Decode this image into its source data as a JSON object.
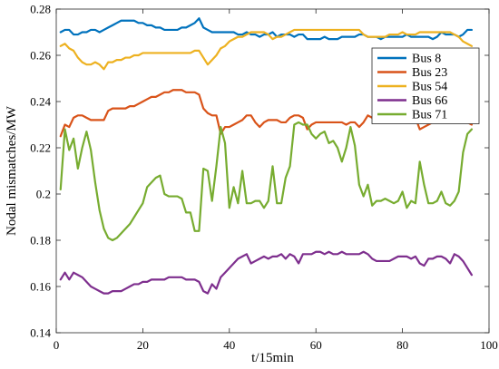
{
  "chart_data": {
    "type": "line",
    "xlabel": "t/15min",
    "ylabel": "Nodal mismatches/MW",
    "xlim": [
      0,
      100
    ],
    "ylim": [
      0.14,
      0.28
    ],
    "x_ticks": [
      0,
      20,
      40,
      60,
      80,
      100
    ],
    "y_ticks": [
      0.14,
      0.16,
      0.18,
      0.2,
      0.22,
      0.24,
      0.26,
      0.28
    ],
    "x_tick_labels": [
      "0",
      "20",
      "40",
      "60",
      "80",
      "100"
    ],
    "y_tick_labels": [
      "0.14",
      "0.16",
      "0.18",
      "0.2",
      "0.22",
      "0.24",
      "0.26",
      "0.28"
    ],
    "grid": false,
    "legend_position": "top-right",
    "series": [
      {
        "name": "Bus 8",
        "color": "#0072BD",
        "x": [
          1,
          2,
          3,
          4,
          5,
          6,
          7,
          8,
          9,
          10,
          11,
          12,
          13,
          14,
          15,
          16,
          17,
          18,
          19,
          20,
          21,
          22,
          23,
          24,
          25,
          26,
          27,
          28,
          29,
          30,
          31,
          32,
          33,
          34,
          35,
          36,
          37,
          38,
          39,
          40,
          41,
          42,
          43,
          44,
          45,
          46,
          47,
          48,
          49,
          50,
          51,
          52,
          53,
          54,
          55,
          56,
          57,
          58,
          59,
          60,
          61,
          62,
          63,
          64,
          65,
          66,
          67,
          68,
          69,
          70,
          71,
          72,
          73,
          74,
          75,
          76,
          77,
          78,
          79,
          80,
          81,
          82,
          83,
          84,
          85,
          86,
          87,
          88,
          89,
          90,
          91,
          92,
          93,
          94,
          95,
          96
        ],
        "values": [
          0.27,
          0.271,
          0.271,
          0.269,
          0.269,
          0.27,
          0.27,
          0.271,
          0.271,
          0.27,
          0.271,
          0.272,
          0.273,
          0.274,
          0.275,
          0.275,
          0.275,
          0.275,
          0.274,
          0.274,
          0.273,
          0.273,
          0.272,
          0.272,
          0.271,
          0.271,
          0.271,
          0.271,
          0.272,
          0.272,
          0.273,
          0.274,
          0.276,
          0.272,
          0.271,
          0.27,
          0.27,
          0.27,
          0.27,
          0.27,
          0.27,
          0.269,
          0.269,
          0.27,
          0.269,
          0.269,
          0.268,
          0.269,
          0.269,
          0.27,
          0.268,
          0.269,
          0.269,
          0.269,
          0.268,
          0.269,
          0.269,
          0.267,
          0.267,
          0.267,
          0.267,
          0.268,
          0.267,
          0.267,
          0.267,
          0.268,
          0.268,
          0.268,
          0.268,
          0.269,
          0.269,
          0.268,
          0.268,
          0.268,
          0.267,
          0.268,
          0.268,
          0.268,
          0.268,
          0.268,
          0.269,
          0.268,
          0.268,
          0.268,
          0.268,
          0.268,
          0.267,
          0.268,
          0.27,
          0.269,
          0.269,
          0.269,
          0.268,
          0.269,
          0.271,
          0.271
        ]
      },
      {
        "name": "Bus 23",
        "color": "#D95319",
        "x": [
          1,
          2,
          3,
          4,
          5,
          6,
          7,
          8,
          9,
          10,
          11,
          12,
          13,
          14,
          15,
          16,
          17,
          18,
          19,
          20,
          21,
          22,
          23,
          24,
          25,
          26,
          27,
          28,
          29,
          30,
          31,
          32,
          33,
          34,
          35,
          36,
          37,
          38,
          39,
          40,
          41,
          42,
          43,
          44,
          45,
          46,
          47,
          48,
          49,
          50,
          51,
          52,
          53,
          54,
          55,
          56,
          57,
          58,
          59,
          60,
          61,
          62,
          63,
          64,
          65,
          66,
          67,
          68,
          69,
          70,
          71,
          72,
          73,
          74,
          75,
          76,
          77,
          78,
          79,
          80,
          81,
          82,
          83,
          84,
          85,
          86,
          87,
          88,
          89,
          90,
          91,
          92,
          93,
          94,
          95,
          96
        ],
        "values": [
          0.225,
          0.23,
          0.229,
          0.233,
          0.234,
          0.234,
          0.233,
          0.232,
          0.232,
          0.232,
          0.232,
          0.236,
          0.237,
          0.237,
          0.237,
          0.237,
          0.238,
          0.238,
          0.239,
          0.24,
          0.241,
          0.242,
          0.242,
          0.243,
          0.244,
          0.244,
          0.245,
          0.245,
          0.245,
          0.244,
          0.244,
          0.244,
          0.243,
          0.237,
          0.235,
          0.234,
          0.234,
          0.226,
          0.229,
          0.229,
          0.23,
          0.231,
          0.232,
          0.234,
          0.234,
          0.231,
          0.229,
          0.231,
          0.232,
          0.232,
          0.232,
          0.231,
          0.231,
          0.233,
          0.234,
          0.234,
          0.233,
          0.228,
          0.23,
          0.231,
          0.231,
          0.231,
          0.231,
          0.231,
          0.231,
          0.231,
          0.23,
          0.231,
          0.231,
          0.229,
          0.231,
          0.234,
          0.233,
          0.232,
          0.233,
          0.233,
          0.232,
          0.232,
          0.233,
          0.234,
          0.233,
          0.233,
          0.233,
          0.228,
          0.229,
          0.23,
          0.231,
          0.231,
          0.232,
          0.231,
          0.232,
          0.233,
          0.234,
          0.232,
          0.231,
          0.23
        ]
      },
      {
        "name": "Bus 54",
        "color": "#EDB120",
        "x": [
          1,
          2,
          3,
          4,
          5,
          6,
          7,
          8,
          9,
          10,
          11,
          12,
          13,
          14,
          15,
          16,
          17,
          18,
          19,
          20,
          21,
          22,
          23,
          24,
          25,
          26,
          27,
          28,
          29,
          30,
          31,
          32,
          33,
          34,
          35,
          36,
          37,
          38,
          39,
          40,
          41,
          42,
          43,
          44,
          45,
          46,
          47,
          48,
          49,
          50,
          51,
          52,
          53,
          54,
          55,
          56,
          57,
          58,
          59,
          60,
          61,
          62,
          63,
          64,
          65,
          66,
          67,
          68,
          69,
          70,
          71,
          72,
          73,
          74,
          75,
          76,
          77,
          78,
          79,
          80,
          81,
          82,
          83,
          84,
          85,
          86,
          87,
          88,
          89,
          90,
          91,
          92,
          93,
          94,
          95,
          96
        ],
        "values": [
          0.264,
          0.265,
          0.263,
          0.262,
          0.259,
          0.257,
          0.256,
          0.256,
          0.257,
          0.256,
          0.254,
          0.257,
          0.257,
          0.258,
          0.258,
          0.259,
          0.259,
          0.26,
          0.26,
          0.261,
          0.261,
          0.261,
          0.261,
          0.261,
          0.261,
          0.261,
          0.261,
          0.261,
          0.261,
          0.261,
          0.261,
          0.262,
          0.262,
          0.259,
          0.256,
          0.258,
          0.26,
          0.263,
          0.264,
          0.266,
          0.267,
          0.268,
          0.268,
          0.269,
          0.27,
          0.27,
          0.27,
          0.27,
          0.269,
          0.267,
          0.268,
          0.268,
          0.269,
          0.27,
          0.271,
          0.271,
          0.271,
          0.271,
          0.271,
          0.271,
          0.271,
          0.271,
          0.271,
          0.271,
          0.271,
          0.271,
          0.271,
          0.271,
          0.271,
          0.271,
          0.269,
          0.268,
          0.268,
          0.268,
          0.268,
          0.268,
          0.269,
          0.269,
          0.269,
          0.27,
          0.269,
          0.269,
          0.269,
          0.27,
          0.27,
          0.27,
          0.27,
          0.27,
          0.27,
          0.27,
          0.27,
          0.269,
          0.268,
          0.266,
          0.265,
          0.264
        ]
      },
      {
        "name": "Bus 66",
        "color": "#7E2F8E",
        "x": [
          1,
          2,
          3,
          4,
          5,
          6,
          7,
          8,
          9,
          10,
          11,
          12,
          13,
          14,
          15,
          16,
          17,
          18,
          19,
          20,
          21,
          22,
          23,
          24,
          25,
          26,
          27,
          28,
          29,
          30,
          31,
          32,
          33,
          34,
          35,
          36,
          37,
          38,
          39,
          40,
          41,
          42,
          43,
          44,
          45,
          46,
          47,
          48,
          49,
          50,
          51,
          52,
          53,
          54,
          55,
          56,
          57,
          58,
          59,
          60,
          61,
          62,
          63,
          64,
          65,
          66,
          67,
          68,
          69,
          70,
          71,
          72,
          73,
          74,
          75,
          76,
          77,
          78,
          79,
          80,
          81,
          82,
          83,
          84,
          85,
          86,
          87,
          88,
          89,
          90,
          91,
          92,
          93,
          94,
          95,
          96
        ],
        "values": [
          0.163,
          0.166,
          0.163,
          0.166,
          0.165,
          0.164,
          0.162,
          0.16,
          0.159,
          0.158,
          0.157,
          0.157,
          0.158,
          0.158,
          0.158,
          0.159,
          0.16,
          0.161,
          0.161,
          0.162,
          0.162,
          0.163,
          0.163,
          0.163,
          0.163,
          0.164,
          0.164,
          0.164,
          0.164,
          0.163,
          0.163,
          0.163,
          0.162,
          0.158,
          0.157,
          0.161,
          0.159,
          0.164,
          0.166,
          0.168,
          0.17,
          0.172,
          0.173,
          0.174,
          0.17,
          0.171,
          0.172,
          0.173,
          0.172,
          0.173,
          0.173,
          0.174,
          0.172,
          0.174,
          0.173,
          0.17,
          0.174,
          0.174,
          0.174,
          0.175,
          0.175,
          0.174,
          0.175,
          0.174,
          0.174,
          0.175,
          0.174,
          0.174,
          0.174,
          0.174,
          0.175,
          0.174,
          0.172,
          0.171,
          0.171,
          0.171,
          0.171,
          0.172,
          0.173,
          0.173,
          0.173,
          0.172,
          0.173,
          0.17,
          0.169,
          0.172,
          0.172,
          0.173,
          0.173,
          0.172,
          0.17,
          0.174,
          0.173,
          0.171,
          0.168,
          0.165
        ]
      },
      {
        "name": "Bus 71",
        "color": "#77AC30",
        "x": [
          1,
          2,
          3,
          4,
          5,
          6,
          7,
          8,
          9,
          10,
          11,
          12,
          13,
          14,
          15,
          16,
          17,
          18,
          19,
          20,
          21,
          22,
          23,
          24,
          25,
          26,
          27,
          28,
          29,
          30,
          31,
          32,
          33,
          34,
          35,
          36,
          37,
          38,
          39,
          40,
          41,
          42,
          43,
          44,
          45,
          46,
          47,
          48,
          49,
          50,
          51,
          52,
          53,
          54,
          55,
          56,
          57,
          58,
          59,
          60,
          61,
          62,
          63,
          64,
          65,
          66,
          67,
          68,
          69,
          70,
          71,
          72,
          73,
          74,
          75,
          76,
          77,
          78,
          79,
          80,
          81,
          82,
          83,
          84,
          85,
          86,
          87,
          88,
          89,
          90,
          91,
          92,
          93,
          94,
          95,
          96
        ],
        "values": [
          0.202,
          0.228,
          0.219,
          0.224,
          0.211,
          0.22,
          0.227,
          0.219,
          0.205,
          0.193,
          0.185,
          0.181,
          0.18,
          0.181,
          0.183,
          0.185,
          0.187,
          0.19,
          0.193,
          0.196,
          0.203,
          0.205,
          0.207,
          0.208,
          0.2,
          0.199,
          0.199,
          0.199,
          0.198,
          0.192,
          0.192,
          0.184,
          0.184,
          0.211,
          0.21,
          0.197,
          0.212,
          0.229,
          0.222,
          0.194,
          0.203,
          0.196,
          0.21,
          0.196,
          0.196,
          0.197,
          0.197,
          0.194,
          0.197,
          0.212,
          0.196,
          0.196,
          0.207,
          0.212,
          0.23,
          0.231,
          0.23,
          0.23,
          0.226,
          0.224,
          0.226,
          0.227,
          0.222,
          0.223,
          0.22,
          0.214,
          0.22,
          0.229,
          0.221,
          0.204,
          0.199,
          0.204,
          0.195,
          0.197,
          0.197,
          0.198,
          0.197,
          0.196,
          0.197,
          0.201,
          0.194,
          0.197,
          0.196,
          0.214,
          0.204,
          0.196,
          0.196,
          0.197,
          0.201,
          0.196,
          0.195,
          0.197,
          0.201,
          0.218,
          0.226,
          0.228
        ]
      }
    ]
  }
}
